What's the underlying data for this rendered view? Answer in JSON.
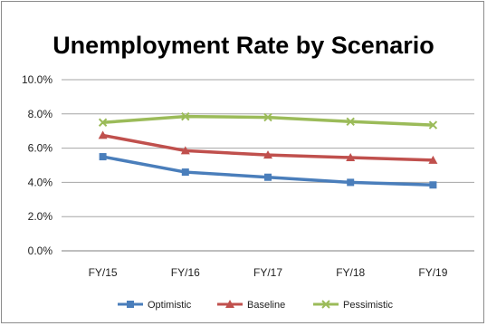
{
  "chart_data": {
    "type": "line",
    "title": "Unemployment Rate by Scenario",
    "xlabel": "",
    "ylabel": "",
    "categories": [
      "FY/15",
      "FY/16",
      "FY/17",
      "FY/18",
      "FY/19"
    ],
    "y_ticks": [
      "0.0%",
      "2.0%",
      "4.0%",
      "6.0%",
      "8.0%",
      "10.0%"
    ],
    "ylim": [
      0,
      10
    ],
    "grid": true,
    "legend_position": "bottom",
    "series": [
      {
        "name": "Optimistic",
        "color": "#4a7ebb",
        "marker": "square",
        "values": [
          5.5,
          4.6,
          4.3,
          4.0,
          3.85
        ]
      },
      {
        "name": "Baseline",
        "color": "#c0504d",
        "marker": "triangle",
        "values": [
          6.75,
          5.85,
          5.6,
          5.45,
          5.3
        ]
      },
      {
        "name": "Pessimistic",
        "color": "#9bbb59",
        "marker": "x",
        "values": [
          7.5,
          7.85,
          7.8,
          7.55,
          7.35
        ]
      }
    ]
  }
}
